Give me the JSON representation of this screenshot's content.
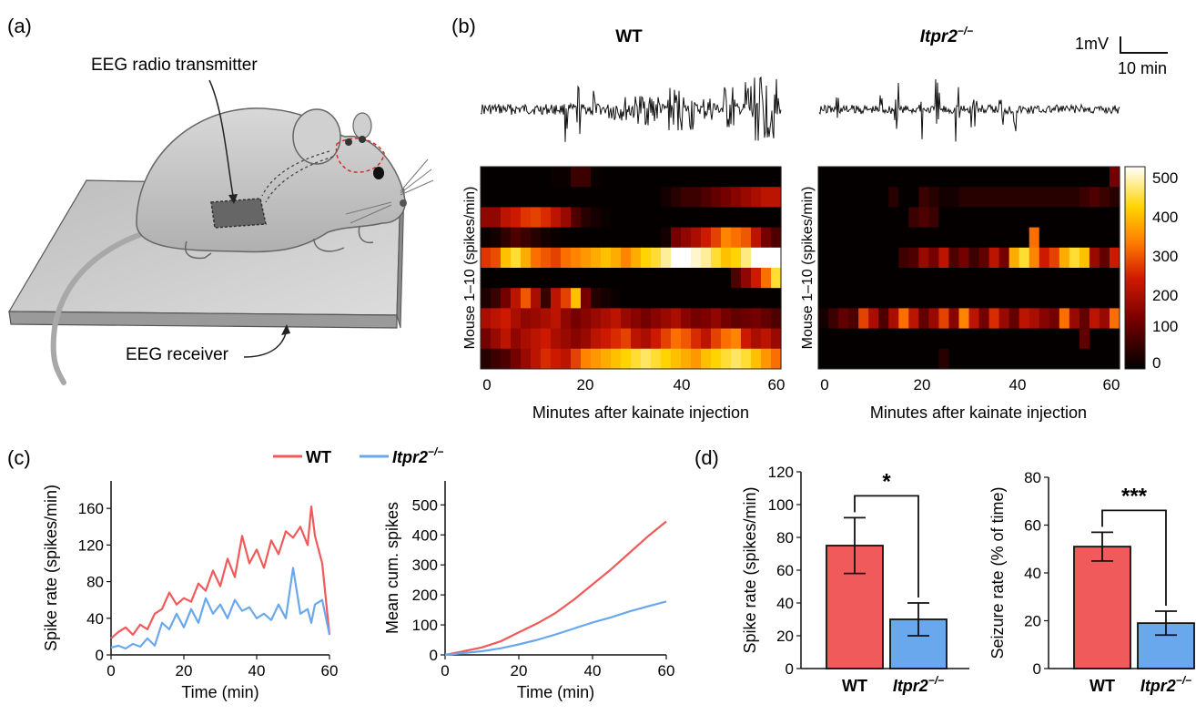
{
  "panels": {
    "a": {
      "letter": "(a)",
      "transmitter_label": "EEG radio transmitter",
      "receiver_label": "EEG receiver"
    },
    "b": {
      "letter": "(b)",
      "wt_title": "WT",
      "ko_title": "Itpr2",
      "ko_super": "−/−",
      "scale_v": "1mV",
      "scale_t": "10 min",
      "ylabel": "Mouse 1–10 (spikes/min)",
      "xlabel": "Minutes after kainate injection",
      "xticks": [
        "0",
        "20",
        "40",
        "60"
      ],
      "colorbar_ticks": [
        "500",
        "400",
        "300",
        "200",
        "100",
        "0"
      ]
    },
    "c": {
      "letter": "(c)",
      "legend_wt": "WT",
      "legend_ko": "Itpr2",
      "legend_ko_super": "−/−"
    },
    "d": {
      "letter": "(d)",
      "cat_wt": "WT",
      "cat_ko": "Itpr2",
      "cat_ko_super": "−/−"
    }
  },
  "colors": {
    "wt": "#f05a5a",
    "ko": "#6aa8ee",
    "trace": "#111111"
  },
  "chart_data": [
    {
      "type": "line",
      "id": "spike_rate_time",
      "xlabel": "Time (min)",
      "ylabel": "Spike rate (spikes/min)",
      "xlim": [
        0,
        60
      ],
      "ylim": [
        0,
        190
      ],
      "xticks": [
        0,
        20,
        40,
        60
      ],
      "yticks": [
        0,
        40,
        80,
        120,
        160
      ],
      "x": [
        0,
        2,
        4,
        6,
        8,
        10,
        12,
        14,
        16,
        18,
        20,
        22,
        24,
        26,
        28,
        30,
        32,
        34,
        36,
        38,
        40,
        42,
        44,
        46,
        48,
        50,
        52,
        54,
        55,
        56,
        58,
        60
      ],
      "series": [
        {
          "name": "WT",
          "values": [
            18,
            25,
            30,
            22,
            33,
            28,
            45,
            50,
            68,
            55,
            62,
            58,
            78,
            70,
            92,
            75,
            105,
            85,
            130,
            100,
            115,
            95,
            125,
            110,
            135,
            128,
            140,
            120,
            162,
            130,
            100,
            22
          ]
        },
        {
          "name": "Itpr2−/−",
          "values": [
            8,
            10,
            7,
            12,
            9,
            18,
            10,
            35,
            28,
            45,
            30,
            50,
            35,
            62,
            45,
            55,
            40,
            60,
            48,
            52,
            40,
            45,
            38,
            55,
            40,
            95,
            45,
            50,
            35,
            55,
            60,
            22
          ]
        }
      ]
    },
    {
      "type": "line",
      "id": "cumulative_spikes",
      "xlabel": "Time (min)",
      "ylabel": "Mean cum. spikes",
      "xlim": [
        0,
        60
      ],
      "ylim": [
        0,
        580
      ],
      "xticks": [
        0,
        20,
        40,
        60
      ],
      "yticks": [
        0,
        100,
        200,
        300,
        400,
        500
      ],
      "x": [
        0,
        5,
        10,
        15,
        20,
        25,
        30,
        35,
        40,
        45,
        50,
        55,
        60
      ],
      "series": [
        {
          "name": "WT",
          "values": [
            0,
            12,
            25,
            45,
            75,
            105,
            140,
            185,
            235,
            285,
            340,
            395,
            445
          ]
        },
        {
          "name": "Itpr2−/−",
          "values": [
            0,
            6,
            12,
            22,
            35,
            50,
            68,
            88,
            108,
            125,
            145,
            162,
            178
          ]
        }
      ]
    },
    {
      "type": "bar",
      "id": "spike_rate_bar",
      "categories": [
        "WT",
        "Itpr2−/−"
      ],
      "values": [
        75,
        30
      ],
      "errors": [
        17,
        10
      ],
      "ylabel": "Spike rate (spikes/min)",
      "ylim": [
        0,
        120
      ],
      "yticks": [
        0,
        20,
        40,
        60,
        80,
        100,
        120
      ],
      "significance": "*"
    },
    {
      "type": "bar",
      "id": "seizure_rate_bar",
      "categories": [
        "WT",
        "Itpr2−/−"
      ],
      "values": [
        51,
        19
      ],
      "errors": [
        6,
        5
      ],
      "ylabel": "Seizure rate (% of time)",
      "ylim": [
        0,
        80
      ],
      "yticks": [
        0,
        20,
        40,
        60,
        80
      ],
      "significance": "***"
    },
    {
      "type": "heatmap",
      "id": "heatmap_wt",
      "title": "WT",
      "rows": 10,
      "cols": 30,
      "xlim": [
        0,
        60
      ],
      "zlim": [
        0,
        500
      ],
      "values": [
        [
          5,
          5,
          5,
          5,
          5,
          5,
          5,
          10,
          10,
          60,
          60,
          10,
          5,
          5,
          5,
          5,
          5,
          5,
          5,
          5,
          5,
          5,
          5,
          5,
          5,
          5,
          5,
          5,
          5,
          5
        ],
        [
          5,
          5,
          5,
          5,
          5,
          5,
          5,
          5,
          5,
          5,
          5,
          5,
          5,
          5,
          5,
          5,
          5,
          5,
          20,
          40,
          60,
          60,
          80,
          100,
          120,
          140,
          160,
          180,
          200,
          200
        ],
        [
          150,
          150,
          200,
          220,
          250,
          260,
          240,
          200,
          160,
          80,
          40,
          20,
          10,
          5,
          5,
          5,
          5,
          5,
          5,
          5,
          5,
          5,
          5,
          5,
          5,
          5,
          5,
          5,
          5,
          5
        ],
        [
          10,
          20,
          50,
          80,
          60,
          40,
          20,
          10,
          5,
          5,
          5,
          5,
          5,
          5,
          5,
          5,
          5,
          5,
          20,
          120,
          150,
          180,
          220,
          260,
          320,
          300,
          280,
          200,
          120,
          80
        ],
        [
          250,
          270,
          380,
          420,
          360,
          300,
          280,
          260,
          300,
          320,
          340,
          360,
          380,
          360,
          320,
          360,
          400,
          420,
          460,
          500,
          500,
          480,
          460,
          420,
          380,
          400,
          450,
          500,
          500,
          500
        ],
        [
          5,
          5,
          5,
          5,
          5,
          5,
          5,
          5,
          5,
          5,
          5,
          5,
          5,
          5,
          5,
          5,
          5,
          5,
          5,
          5,
          5,
          5,
          5,
          5,
          5,
          80,
          150,
          220,
          300,
          420
        ],
        [
          30,
          60,
          120,
          200,
          280,
          180,
          60,
          200,
          260,
          380,
          120,
          40,
          20,
          10,
          5,
          5,
          5,
          5,
          5,
          5,
          5,
          5,
          5,
          5,
          5,
          5,
          5,
          5,
          5,
          5
        ],
        [
          180,
          200,
          220,
          180,
          150,
          160,
          180,
          200,
          150,
          120,
          140,
          160,
          180,
          200,
          160,
          140,
          120,
          140,
          160,
          180,
          140,
          120,
          130,
          150,
          120,
          100,
          110,
          120,
          100,
          80
        ],
        [
          120,
          160,
          200,
          150,
          180,
          200,
          220,
          180,
          160,
          140,
          160,
          200,
          220,
          240,
          260,
          200,
          180,
          220,
          260,
          300,
          280,
          240,
          200,
          260,
          300,
          320,
          220,
          180,
          200,
          160
        ],
        [
          40,
          60,
          80,
          120,
          160,
          200,
          240,
          220,
          200,
          260,
          320,
          340,
          360,
          380,
          400,
          420,
          440,
          420,
          400,
          380,
          360,
          340,
          380,
          400,
          420,
          440,
          420,
          380,
          340,
          300
        ]
      ]
    },
    {
      "type": "heatmap",
      "id": "heatmap_ko",
      "title": "Itpr2−/−",
      "rows": 10,
      "cols": 30,
      "xlim": [
        0,
        60
      ],
      "zlim": [
        0,
        500
      ],
      "values": [
        [
          5,
          5,
          5,
          5,
          5,
          5,
          5,
          5,
          5,
          5,
          5,
          5,
          5,
          5,
          5,
          5,
          5,
          5,
          5,
          5,
          5,
          5,
          5,
          5,
          5,
          5,
          5,
          5,
          5,
          120
        ],
        [
          5,
          5,
          5,
          5,
          5,
          5,
          5,
          40,
          5,
          5,
          60,
          40,
          20,
          20,
          40,
          40,
          40,
          40,
          40,
          40,
          40,
          40,
          40,
          40,
          40,
          40,
          60,
          80,
          60,
          40
        ],
        [
          5,
          5,
          5,
          5,
          5,
          5,
          5,
          5,
          5,
          60,
          80,
          60,
          5,
          5,
          5,
          5,
          5,
          5,
          5,
          5,
          5,
          5,
          5,
          5,
          5,
          5,
          5,
          5,
          5,
          5
        ],
        [
          5,
          5,
          5,
          5,
          5,
          5,
          5,
          5,
          5,
          5,
          5,
          5,
          5,
          5,
          5,
          5,
          5,
          5,
          5,
          5,
          5,
          300,
          5,
          5,
          5,
          5,
          5,
          5,
          5,
          5
        ],
        [
          5,
          5,
          5,
          5,
          5,
          5,
          5,
          5,
          60,
          80,
          160,
          120,
          200,
          80,
          120,
          60,
          100,
          200,
          120,
          360,
          420,
          320,
          220,
          260,
          360,
          420,
          380,
          160,
          100,
          220
        ],
        [
          5,
          5,
          5,
          5,
          5,
          5,
          5,
          5,
          5,
          5,
          5,
          5,
          5,
          5,
          5,
          5,
          5,
          5,
          5,
          5,
          5,
          5,
          5,
          5,
          5,
          5,
          5,
          5,
          5,
          5
        ],
        [
          5,
          5,
          5,
          5,
          5,
          5,
          5,
          5,
          5,
          5,
          5,
          5,
          5,
          5,
          5,
          5,
          5,
          5,
          5,
          5,
          5,
          5,
          5,
          5,
          5,
          5,
          5,
          5,
          5,
          5
        ],
        [
          20,
          60,
          100,
          80,
          260,
          180,
          80,
          180,
          300,
          200,
          100,
          160,
          260,
          140,
          320,
          200,
          120,
          240,
          160,
          100,
          200,
          180,
          140,
          120,
          300,
          160,
          100,
          200,
          160,
          300
        ],
        [
          5,
          5,
          5,
          5,
          5,
          5,
          5,
          5,
          5,
          5,
          5,
          5,
          5,
          5,
          5,
          5,
          5,
          5,
          5,
          5,
          5,
          5,
          5,
          5,
          5,
          5,
          100,
          5,
          5,
          5
        ],
        [
          5,
          5,
          5,
          5,
          5,
          5,
          5,
          5,
          5,
          5,
          5,
          5,
          40,
          5,
          5,
          5,
          5,
          5,
          5,
          5,
          5,
          5,
          5,
          5,
          5,
          5,
          5,
          5,
          5,
          5
        ]
      ]
    }
  ]
}
